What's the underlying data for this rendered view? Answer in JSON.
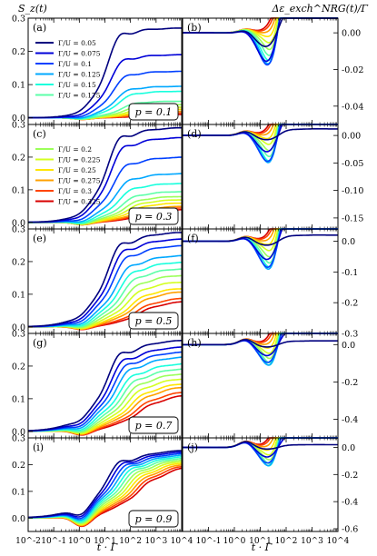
{
  "figure": {
    "left_title": "S_z(t)",
    "right_title": "Δε_exch^NRG(t)/Γ",
    "xlabel": "t · Γ",
    "x_ticks": [
      "10^-2",
      "10^-1",
      "10^0",
      "10^1",
      "10^2",
      "10^3",
      "10^4"
    ],
    "x_tick_values": [
      -2,
      -1,
      0,
      1,
      2,
      3,
      4
    ],
    "legend_a": [
      {
        "label": "Γ/U = 0.05",
        "color": "#00007f"
      },
      {
        "label": "Γ/U = 0.075",
        "color": "#0000d8"
      },
      {
        "label": "Γ/U = 0.1",
        "color": "#0040ff"
      },
      {
        "label": "Γ/U = 0.125",
        "color": "#00a8ff"
      },
      {
        "label": "Γ/U = 0.15",
        "color": "#18ffdd"
      },
      {
        "label": "Γ/U = 0.175",
        "color": "#5cffa8"
      }
    ],
    "legend_c": [
      {
        "label": "Γ/U = 0.2",
        "color": "#9cff5a"
      },
      {
        "label": "Γ/U = 0.225",
        "color": "#d4ff22"
      },
      {
        "label": "Γ/U = 0.25",
        "color": "#ffe600"
      },
      {
        "label": "Γ/U = 0.275",
        "color": "#ffa000"
      },
      {
        "label": "Γ/U = 0.3",
        "color": "#ff4400"
      },
      {
        "label": "Γ/U = 0.325",
        "color": "#d80000"
      }
    ]
  },
  "chart_data": [
    {
      "panel": "(a)",
      "p_label": "p = 0.1",
      "type": "line",
      "column": "left",
      "ylim": [
        -0.02,
        0.3
      ],
      "yticks": [
        "0.0",
        "0.1",
        "0.2",
        "0.3"
      ],
      "ytick_values": [
        0,
        0.1,
        0.2,
        0.3
      ],
      "x_scale": "log10",
      "plateaus": [
        0.27,
        0.19,
        0.14,
        0.095,
        0.08,
        0.05,
        0.04,
        0.032,
        0.026,
        0.02,
        0.015,
        0.01
      ],
      "dip": 0.005
    },
    {
      "panel": "(b)",
      "type": "line",
      "column": "right",
      "ylim": [
        -0.05,
        0.008
      ],
      "yticks": [
        "0.00",
        "-0.02",
        "-0.04"
      ],
      "ytick_values": [
        0,
        -0.02,
        -0.04
      ],
      "x_scale": "log10",
      "minima": [
        -0.012,
        -0.027,
        -0.034,
        -0.038,
        -0.041,
        -0.043,
        -0.045,
        -0.046,
        -0.047,
        -0.048,
        -0.0485,
        -0.049
      ],
      "finals": [
        -0.016,
        -0.032,
        -0.037,
        -0.039,
        -0.04,
        -0.04,
        -0.04,
        -0.04,
        -0.04,
        -0.04,
        -0.04,
        -0.04
      ],
      "peak": 0.002
    },
    {
      "panel": "(c)",
      "p_label": "p = 0.3",
      "type": "line",
      "column": "left",
      "ylim": [
        -0.02,
        0.3
      ],
      "yticks": [
        "0.0",
        "0.1",
        "0.2",
        "0.3"
      ],
      "ytick_values": [
        0,
        0.1,
        0.2,
        0.3
      ],
      "x_scale": "log10",
      "plateaus": [
        0.29,
        0.26,
        0.2,
        0.15,
        0.12,
        0.095,
        0.08,
        0.07,
        0.06,
        0.05,
        0.045,
        0.04
      ],
      "dip": 0.008
    },
    {
      "panel": "(d)",
      "type": "line",
      "column": "right",
      "ylim": [
        -0.17,
        0.02
      ],
      "yticks": [
        "0.00",
        "-0.05",
        "-0.10",
        "-0.15"
      ],
      "ytick_values": [
        0,
        -0.05,
        -0.1,
        -0.15
      ],
      "x_scale": "log10",
      "minima": [
        -0.012,
        -0.05,
        -0.09,
        -0.11,
        -0.125,
        -0.135,
        -0.142,
        -0.148,
        -0.152,
        -0.155,
        -0.158,
        -0.16
      ],
      "finals": [
        -0.012,
        -0.05,
        -0.09,
        -0.11,
        -0.12,
        -0.128,
        -0.133,
        -0.136,
        -0.138,
        -0.14,
        -0.141,
        -0.142
      ],
      "peak": 0.008
    },
    {
      "panel": "(e)",
      "p_label": "p = 0.5",
      "type": "line",
      "column": "left",
      "ylim": [
        -0.02,
        0.3
      ],
      "yticks": [
        "0.0",
        "0.1",
        "0.2",
        "0.3"
      ],
      "ytick_values": [
        0,
        0.1,
        0.2,
        0.3
      ],
      "x_scale": "log10",
      "plateaus": [
        0.29,
        0.27,
        0.25,
        0.22,
        0.2,
        0.18,
        0.16,
        0.14,
        0.12,
        0.11,
        0.09,
        0.08
      ],
      "dip": 0.01
    },
    {
      "panel": "(f)",
      "type": "line",
      "column": "right",
      "ylim": [
        -0.3,
        0.04
      ],
      "yticks": [
        "0.0",
        "-0.1",
        "-0.2",
        "-0.3"
      ],
      "ytick_values": [
        0,
        -0.1,
        -0.2,
        -0.3
      ],
      "x_scale": "log10",
      "minima": [
        -0.02,
        -0.1,
        -0.16,
        -0.2,
        -0.22,
        -0.24,
        -0.25,
        -0.26,
        -0.265,
        -0.27,
        -0.275,
        -0.28
      ],
      "finals": [
        -0.02,
        -0.1,
        -0.15,
        -0.19,
        -0.2,
        -0.21,
        -0.22,
        -0.225,
        -0.23,
        -0.235,
        -0.24,
        -0.24
      ],
      "peak": 0.015
    },
    {
      "panel": "(g)",
      "p_label": "p = 0.7",
      "type": "line",
      "column": "left",
      "ylim": [
        -0.02,
        0.3
      ],
      "yticks": [
        "0.0",
        "0.1",
        "0.2",
        "0.3"
      ],
      "ytick_values": [
        0,
        0.1,
        0.2,
        0.3
      ],
      "x_scale": "log10",
      "plateaus": [
        0.28,
        0.26,
        0.245,
        0.23,
        0.21,
        0.195,
        0.18,
        0.165,
        0.15,
        0.14,
        0.125,
        0.115
      ],
      "dip": 0.015
    },
    {
      "panel": "(h)",
      "type": "line",
      "column": "right",
      "ylim": [
        -0.5,
        0.06
      ],
      "yticks": [
        "0.0",
        "-0.2",
        "-0.4"
      ],
      "ytick_values": [
        0,
        -0.2,
        -0.4
      ],
      "x_scale": "log10",
      "minima": [
        -0.02,
        -0.1,
        -0.18,
        -0.24,
        -0.29,
        -0.33,
        -0.36,
        -0.39,
        -0.41,
        -0.43,
        -0.44,
        -0.45
      ],
      "finals": [
        -0.02,
        -0.1,
        -0.17,
        -0.22,
        -0.26,
        -0.29,
        -0.31,
        -0.33,
        -0.34,
        -0.35,
        -0.36,
        -0.36
      ],
      "peak": 0.03
    },
    {
      "panel": "(i)",
      "p_label": "p = 0.9",
      "type": "line",
      "column": "left",
      "ylim": [
        -0.05,
        0.3
      ],
      "yticks": [
        "0.0",
        "0.1",
        "0.2",
        "0.3"
      ],
      "ytick_values": [
        0,
        0.1,
        0.2,
        0.3
      ],
      "x_scale": "log10",
      "plateaus": [
        0.255,
        0.25,
        0.245,
        0.24,
        0.235,
        0.23,
        0.225,
        0.22,
        0.215,
        0.21,
        0.205,
        0.2
      ],
      "dip": 0.04
    },
    {
      "panel": "(j)",
      "type": "line",
      "column": "right",
      "ylim": [
        -0.62,
        0.07
      ],
      "yticks": [
        "0.0",
        "-0.2",
        "-0.4",
        "-0.6"
      ],
      "ytick_values": [
        0,
        -0.2,
        -0.4,
        -0.6
      ],
      "x_scale": "log10",
      "minima": [
        -0.02,
        -0.12,
        -0.22,
        -0.3,
        -0.37,
        -0.42,
        -0.47,
        -0.51,
        -0.54,
        -0.56,
        -0.58,
        -0.59
      ],
      "finals": [
        -0.02,
        -0.12,
        -0.22,
        -0.3,
        -0.36,
        -0.4,
        -0.44,
        -0.47,
        -0.49,
        -0.51,
        -0.53,
        -0.54
      ],
      "peak": 0.045
    }
  ]
}
